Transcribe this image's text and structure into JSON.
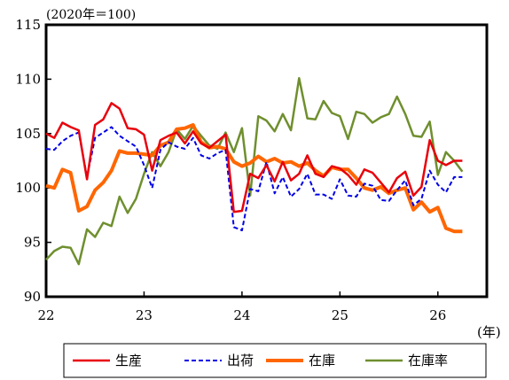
{
  "chart_data": {
    "type": "line",
    "unit_note": "(2020年＝100)",
    "x_unit": "(年)",
    "ylim": [
      90,
      115
    ],
    "y_ticks": [
      90,
      95,
      100,
      105,
      110,
      115
    ],
    "y_tick_labels": [
      "90",
      "95",
      "100",
      "105",
      "110",
      "115"
    ],
    "x_ticks": [
      22,
      23,
      24,
      25,
      26
    ],
    "x_tick_labels": [
      "22",
      "23",
      "24",
      "25",
      "26"
    ],
    "xlim": [
      22,
      26.5
    ],
    "grid": false,
    "legend_position": "bottom",
    "x": [
      22.0,
      22.083,
      22.167,
      22.25,
      22.333,
      22.417,
      22.5,
      22.583,
      22.667,
      22.75,
      22.833,
      22.917,
      23.0,
      23.083,
      23.167,
      23.25,
      23.333,
      23.417,
      23.5,
      23.583,
      23.667,
      23.75,
      23.833,
      23.917,
      24.0,
      24.083,
      24.167,
      24.25,
      24.333,
      24.417,
      24.5,
      24.583,
      24.667,
      24.75,
      24.833,
      24.917,
      25.0,
      25.083,
      25.167,
      25.25,
      25.333,
      25.417,
      25.5,
      25.583,
      25.667,
      25.75,
      25.833,
      25.917,
      26.0,
      26.083,
      26.167,
      26.25
    ],
    "series": [
      {
        "name": "生産",
        "color": "#e8000b",
        "dash": "solid",
        "width": 2.5,
        "values": [
          105.0,
          104.6,
          106.0,
          105.6,
          105.3,
          100.8,
          105.8,
          106.3,
          107.8,
          107.3,
          105.5,
          105.4,
          104.9,
          101.6,
          104.4,
          104.8,
          105.1,
          104.1,
          105.2,
          104.1,
          103.7,
          104.3,
          104.9,
          97.8,
          97.9,
          101.3,
          100.9,
          102.1,
          100.6,
          102.4,
          100.7,
          101.3,
          103.0,
          101.3,
          101.0,
          102.0,
          101.8,
          101.2,
          100.3,
          101.7,
          101.4,
          100.5,
          99.6,
          100.9,
          101.5,
          99.3,
          100.1,
          104.4,
          102.5,
          102.1,
          102.5,
          102.5
        ]
      },
      {
        "name": "出荷",
        "color": "#0000e6",
        "dash": "dashed",
        "width": 2,
        "values": [
          103.6,
          103.5,
          104.3,
          104.8,
          105.1,
          101.0,
          104.6,
          105.1,
          105.6,
          104.8,
          104.3,
          103.8,
          102.1,
          100.0,
          103.5,
          104.2,
          103.8,
          103.6,
          104.6,
          103.0,
          102.7,
          103.2,
          103.5,
          96.4,
          96.1,
          99.9,
          99.7,
          102.4,
          99.5,
          101.0,
          99.2,
          99.9,
          101.3,
          99.4,
          99.4,
          99.0,
          100.8,
          99.3,
          99.2,
          100.4,
          100.2,
          98.9,
          98.8,
          99.8,
          100.7,
          98.4,
          99.0,
          101.6,
          100.3,
          99.6,
          101.0,
          101.0
        ]
      },
      {
        "name": "在庫",
        "color": "#ff6600",
        "dash": "solid",
        "width": 4,
        "values": [
          100.2,
          100.0,
          101.7,
          101.4,
          97.9,
          98.3,
          99.8,
          100.5,
          101.6,
          103.4,
          103.2,
          103.2,
          103.1,
          103.0,
          103.9,
          104.2,
          105.4,
          105.5,
          105.8,
          104.2,
          103.7,
          103.8,
          103.6,
          102.4,
          102.0,
          102.3,
          102.9,
          102.4,
          102.7,
          102.3,
          102.4,
          102.0,
          102.3,
          101.6,
          101.1,
          101.9,
          101.7,
          101.7,
          100.9,
          100.0,
          99.8,
          100.1,
          99.5,
          99.8,
          100.0,
          98.0,
          98.7,
          97.8,
          98.2,
          96.3,
          96.0,
          96.0
        ]
      },
      {
        "name": "在庫率",
        "color": "#6f8f2e",
        "dash": "solid",
        "width": 2.5,
        "values": [
          93.4,
          94.2,
          94.6,
          94.5,
          93.0,
          96.2,
          95.5,
          96.8,
          96.5,
          99.2,
          97.7,
          99.0,
          101.3,
          103.3,
          102.0,
          103.3,
          105.4,
          104.5,
          105.7,
          104.8,
          103.9,
          103.6,
          105.1,
          103.3,
          105.5,
          99.3,
          106.6,
          106.2,
          105.2,
          106.8,
          105.3,
          110.1,
          106.4,
          106.3,
          108.0,
          106.9,
          106.6,
          104.5,
          107.0,
          106.8,
          106.0,
          106.5,
          106.8,
          108.4,
          106.8,
          104.8,
          104.7,
          106.1,
          101.2,
          103.3,
          102.5,
          101.5
        ]
      }
    ]
  }
}
